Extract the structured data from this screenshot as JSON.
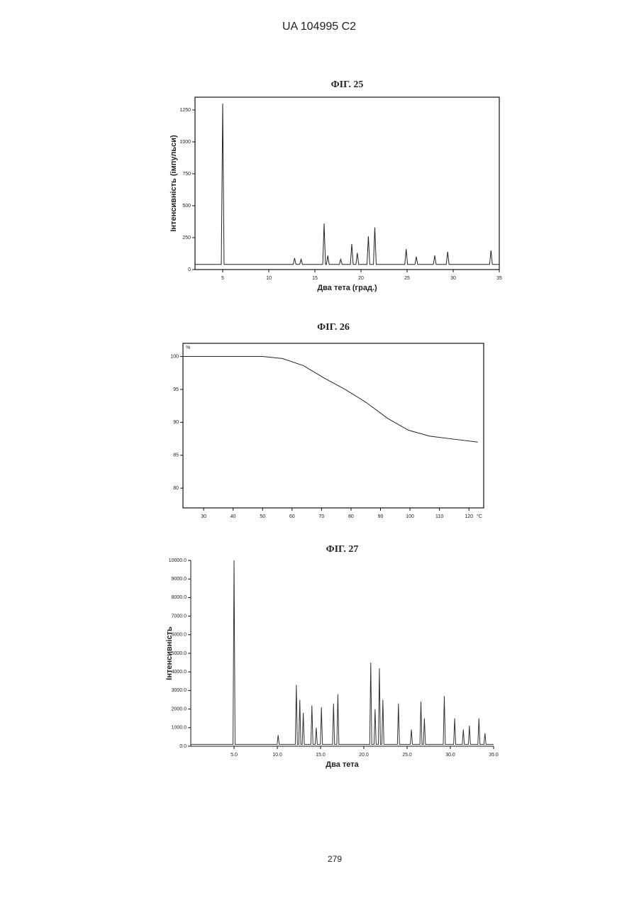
{
  "header": "UA 104995 C2",
  "page_number": "279",
  "chart_data": [
    {
      "type": "line",
      "title": "ФІГ. 25",
      "x_label": "Два тета (град.)",
      "y_label": "Інтенсивність (імпульси)",
      "color": "#222222",
      "xlim": [
        2,
        35
      ],
      "ylim": [
        0,
        1350
      ],
      "xticks": [
        5,
        10,
        15,
        20,
        25,
        30,
        35
      ],
      "yticks": [
        0,
        250,
        500,
        750,
        1000,
        1250
      ],
      "frame": true,
      "x": [
        2,
        4.85,
        5,
        5.15,
        12.65,
        12.8,
        12.95,
        13.35,
        13.5,
        13.65,
        15.85,
        16,
        16.15,
        16.25,
        16.4,
        16.55,
        17.65,
        17.8,
        17.95,
        18.85,
        19,
        19.15,
        19.45,
        19.6,
        19.75,
        20.65,
        20.8,
        20.95,
        21.35,
        21.5,
        21.65,
        24.75,
        24.9,
        25.05,
        25.85,
        26,
        26.15,
        27.85,
        28,
        28.15,
        29.25,
        29.4,
        29.55,
        33.95,
        34.1,
        34.25,
        35
      ],
      "values": [
        40,
        40,
        1300,
        40,
        40,
        90,
        40,
        40,
        80,
        40,
        40,
        360,
        40,
        40,
        110,
        40,
        40,
        80,
        40,
        40,
        200,
        40,
        40,
        130,
        40,
        40,
        260,
        40,
        40,
        330,
        40,
        40,
        160,
        40,
        40,
        100,
        40,
        40,
        110,
        40,
        40,
        140,
        40,
        40,
        150,
        40,
        40
      ]
    },
    {
      "type": "line",
      "title": "ФІГ. 26",
      "y_unit": "%",
      "x_unit": "°C",
      "color": "#222222",
      "xlim": [
        23,
        125
      ],
      "ylim": [
        77,
        102
      ],
      "xticks": [
        30,
        40,
        50,
        60,
        70,
        80,
        90,
        100,
        110,
        120
      ],
      "yticks": [
        80,
        85,
        90,
        95,
        100
      ],
      "frame": true,
      "x": [
        23,
        30,
        40,
        50,
        56.7,
        63.9,
        71,
        78,
        85.2,
        92.4,
        99.5,
        106.7,
        113.8,
        123
      ],
      "values": [
        100,
        100,
        100,
        100,
        99.7,
        98.6,
        96.7,
        95,
        93,
        90.6,
        88.8,
        87.9,
        87.5,
        87
      ]
    },
    {
      "type": "line",
      "title": "ФІГ. 27",
      "x_label": "Два тета",
      "y_label": "Інтенсивність",
      "color": "#333333",
      "xlim": [
        0,
        35
      ],
      "ylim": [
        0,
        10000
      ],
      "xticks": [
        {
          "value": 5,
          "label": "5.0"
        },
        {
          "value": 10,
          "label": "10.0"
        },
        {
          "value": 15,
          "label": "15.0"
        },
        {
          "value": 20,
          "label": "20.0"
        },
        {
          "value": 25,
          "label": "25.0"
        },
        {
          "value": 30,
          "label": "30.0"
        },
        {
          "value": 35,
          "label": "35.0"
        }
      ],
      "yticks": [
        {
          "value": 0,
          "label": "0.0"
        },
        {
          "value": 1000,
          "label": "1000.0"
        },
        {
          "value": 2000,
          "label": "2000.0"
        },
        {
          "value": 3000,
          "label": "3000.0"
        },
        {
          "value": 4000,
          "label": "4000.0"
        },
        {
          "value": 5000,
          "label": "5000.0"
        },
        {
          "value": 6000,
          "label": "6000.0"
        },
        {
          "value": 7000,
          "label": "7000.0"
        },
        {
          "value": 8000,
          "label": "8000.0"
        },
        {
          "value": 9000,
          "label": "9000.0"
        },
        {
          "value": 10000,
          "label": "10000.0"
        }
      ],
      "frame": false,
      "x": [
        0,
        4.88,
        5,
        5.12,
        9.98,
        10.1,
        10.22,
        12.08,
        12.2,
        12.32,
        12.48,
        12.6,
        12.72,
        12.88,
        13,
        13.12,
        13.88,
        14,
        14.12,
        14.38,
        14.5,
        14.62,
        14.98,
        15.1,
        15.22,
        16.38,
        16.5,
        16.62,
        16.88,
        17,
        17.12,
        20.68,
        20.8,
        20.92,
        21.18,
        21.3,
        21.42,
        21.68,
        21.8,
        21.92,
        22.08,
        22.2,
        22.32,
        23.88,
        24,
        24.12,
        25.38,
        25.5,
        25.62,
        26.48,
        26.6,
        26.72,
        26.88,
        27,
        27.12,
        29.18,
        29.3,
        29.42,
        30.38,
        30.5,
        30.62,
        31.38,
        31.5,
        31.62,
        32.08,
        32.2,
        32.32,
        33.18,
        33.3,
        33.42,
        33.88,
        34,
        34.12,
        35
      ],
      "values": [
        100,
        100,
        10000,
        100,
        100,
        600,
        100,
        100,
        3300,
        100,
        100,
        2500,
        100,
        100,
        1800,
        100,
        100,
        2200,
        100,
        100,
        1000,
        100,
        100,
        2100,
        100,
        100,
        2300,
        100,
        100,
        2800,
        100,
        100,
        4500,
        100,
        100,
        2000,
        100,
        100,
        4200,
        100,
        100,
        2500,
        100,
        100,
        2300,
        100,
        100,
        900,
        100,
        100,
        2400,
        100,
        100,
        1500,
        100,
        100,
        2700,
        100,
        100,
        1500,
        100,
        100,
        900,
        100,
        100,
        1100,
        100,
        100,
        1500,
        100,
        100,
        700,
        100,
        100
      ]
    }
  ]
}
